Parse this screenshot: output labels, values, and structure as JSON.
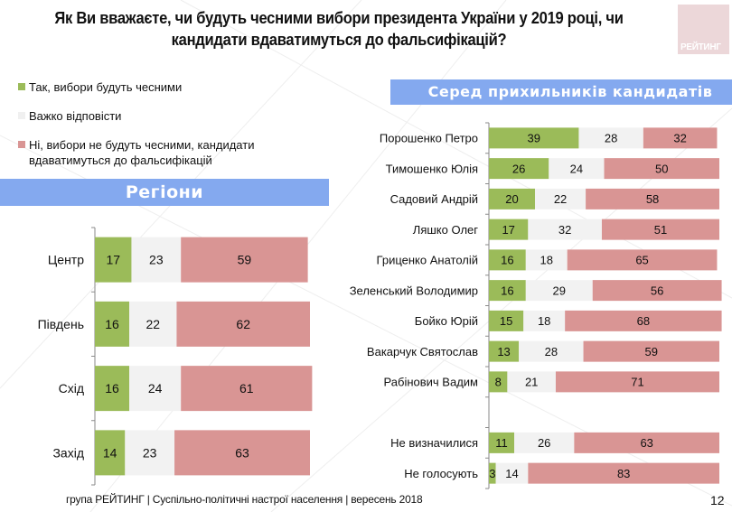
{
  "title": "Як Ви вважаєте, чи будуть чесними вибори президента України у 2019 році, чи кандидати вдаватимуться до фальсифікацій?",
  "logo": {
    "text": "РЕЙТИНГ"
  },
  "legend": [
    {
      "label": "Так, вибори будуть чесними",
      "color": "#9bbb59"
    },
    {
      "label": "Важко відповісти",
      "color": "#f2f2f2"
    },
    {
      "label": "Ні, вибори не будуть чесними, кандидати вдаватимуться до фальсифікацій",
      "color": "#d99594"
    }
  ],
  "footer": {
    "text": "група РЕЙТИНГ |  Суспільно-політичні настрої населення | вересень  2018",
    "page": "12"
  },
  "chart_data": [
    {
      "type": "bar",
      "orientation": "horizontal",
      "stacked": true,
      "title": "Регіони",
      "categories": [
        "Центр",
        "Південь",
        "Схід",
        "Захід"
      ],
      "series": [
        {
          "name": "Так, вибори будуть чесними",
          "color": "#9bbb59",
          "values": [
            17,
            16,
            16,
            14
          ]
        },
        {
          "name": "Важко відповісти",
          "color": "#f2f2f2",
          "values": [
            23,
            22,
            24,
            23
          ]
        },
        {
          "name": "Ні, вибори не будуть чесними, кандидати вдаватимуться до фальсифікацій",
          "color": "#d99594",
          "values": [
            59,
            62,
            61,
            63
          ]
        }
      ],
      "xlim": [
        0,
        100
      ],
      "grid": false,
      "legend": "top-left"
    },
    {
      "type": "bar",
      "orientation": "horizontal",
      "stacked": true,
      "title": "Серед прихильників кандидатів",
      "categories": [
        "Порошенко Петро",
        "Тимошенко Юлія",
        "Садовий Андрій",
        "Ляшко Олег",
        "Гриценко Анатолій",
        "Зеленський Володимир",
        "Бойко Юрій",
        "Вакарчук Святослав",
        "Рабінович Вадим",
        "",
        "Не визначилися",
        "Не голосують"
      ],
      "series": [
        {
          "name": "Так, вибори будуть чесними",
          "color": "#9bbb59",
          "values": [
            39,
            26,
            20,
            17,
            16,
            16,
            15,
            13,
            8,
            null,
            11,
            3
          ]
        },
        {
          "name": "Важко відповісти",
          "color": "#f2f2f2",
          "values": [
            28,
            24,
            22,
            32,
            18,
            29,
            18,
            28,
            21,
            null,
            26,
            14
          ]
        },
        {
          "name": "Ні, вибори не будуть чесними, кандидати вдаватимуться до фальсифікацій",
          "color": "#d99594",
          "values": [
            32,
            50,
            58,
            51,
            65,
            56,
            68,
            59,
            71,
            null,
            63,
            83
          ]
        }
      ],
      "xlim": [
        0,
        100
      ],
      "grid": false,
      "legend": "none"
    }
  ]
}
